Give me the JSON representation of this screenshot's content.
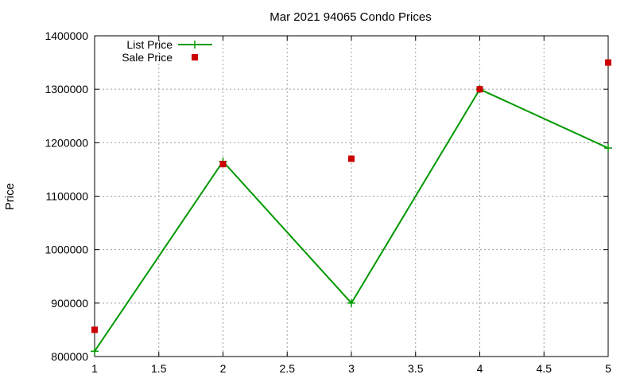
{
  "chart_data": {
    "type": "line",
    "title": "Mar 2021 94065 Condo Prices",
    "xlabel": "",
    "ylabel": "Price",
    "xlim": [
      1,
      5
    ],
    "ylim": [
      800000,
      1400000
    ],
    "x_ticks": [
      1,
      1.5,
      2,
      2.5,
      3,
      3.5,
      4,
      4.5,
      5
    ],
    "y_ticks": [
      800000,
      900000,
      1000000,
      1100000,
      1200000,
      1300000,
      1400000
    ],
    "grid": true,
    "legend_position": "top-left",
    "series": [
      {
        "name": "List Price",
        "style": "line+cross",
        "color": "#009900",
        "x": [
          1,
          2,
          3,
          4,
          5
        ],
        "y": [
          810000,
          1165000,
          900000,
          1300000,
          1190000
        ]
      },
      {
        "name": "Sale Price",
        "style": "square-points",
        "color": "#cc0000",
        "x": [
          1,
          2,
          3,
          4,
          5
        ],
        "y": [
          850000,
          1160000,
          1170000,
          1300000,
          1350000
        ]
      }
    ]
  }
}
